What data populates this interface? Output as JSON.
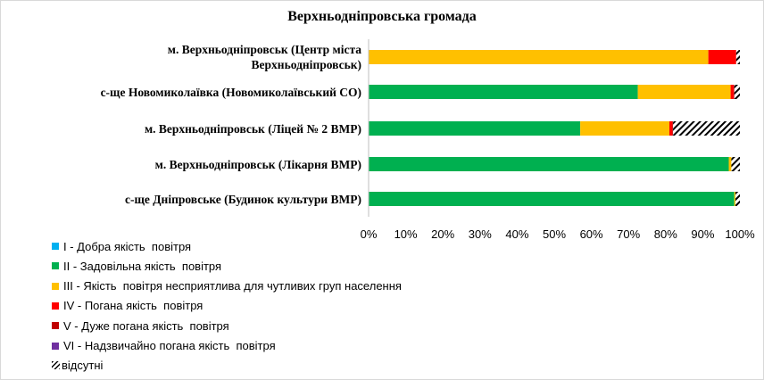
{
  "chart_data": {
    "type": "bar",
    "orientation": "horizontal",
    "stacked": "percent",
    "title": "Верхньодніпровська громада",
    "categories": [
      [
        "м. Верхньодніпровськ (Центр міста",
        "Верхньодніпровськ)"
      ],
      [
        "с-ще Новомиколаївка (Новомиколаївський СО)"
      ],
      [
        "м. Верхньодніпровськ (Ліцей № 2 ВМР)"
      ],
      [
        "м. Верхньодніпровськ (Лікарня ВМР)"
      ],
      [
        "с-ще Дніпровське (Будинок культури ВМР)"
      ]
    ],
    "series": [
      {
        "name": "I - Добра якість  повітря",
        "color": "#00b0f0",
        "values": [
          0,
          0,
          0,
          0,
          0
        ]
      },
      {
        "name": "II - Задовільна якість  повітря",
        "color": "#00b050",
        "values": [
          0,
          72.5,
          57,
          97,
          98.5
        ]
      },
      {
        "name": "III - Якість  повітря несприятлива для чутливих груп населення",
        "color": "#ffc000",
        "values": [
          91.5,
          25,
          24,
          0.7,
          0.3
        ]
      },
      {
        "name": "IV - Погана якість  повітря",
        "color": "#ff0000",
        "values": [
          7.5,
          0.8,
          0.8,
          0,
          0
        ]
      },
      {
        "name": "V - Дуже погана якість  повітря",
        "color": "#c00000",
        "values": [
          0,
          0.2,
          0.2,
          0,
          0
        ]
      },
      {
        "name": "VI - Надзвичайно погана якість  повітря",
        "color": "#7030a0",
        "values": [
          0,
          0,
          0,
          0,
          0
        ]
      },
      {
        "name": "відсутні",
        "pattern": "hatch",
        "values": [
          1,
          1.5,
          18,
          2.3,
          1.2
        ]
      }
    ],
    "xlim": [
      0,
      100
    ],
    "xticks": [
      "0%",
      "10%",
      "20%",
      "30%",
      "40%",
      "50%",
      "60%",
      "70%",
      "80%",
      "90%",
      "100%"
    ],
    "legend_position": "bottom-left",
    "grid": false
  }
}
